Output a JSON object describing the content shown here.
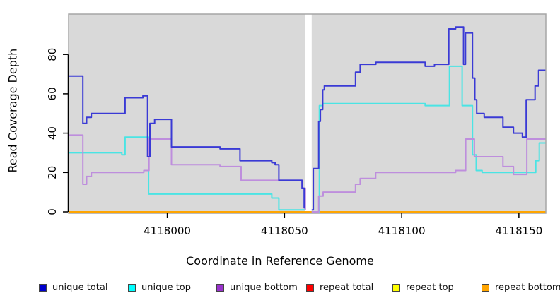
{
  "chart_data": {
    "type": "line",
    "subtype": "step-coverage",
    "title": "",
    "xlabel": "Coordinate in Reference Genome",
    "ylabel": "Read Coverage Depth",
    "xlim": [
      4117957.9,
      4118161.5
    ],
    "ylim": [
      0,
      100
    ],
    "x_ticks": [
      4118000,
      4118050,
      4118100,
      4118150
    ],
    "x_tick_labels": [
      "4118000",
      "4118050",
      "4118100",
      "4118150"
    ],
    "y_ticks": [
      0,
      20,
      40,
      60,
      80
    ],
    "y_tick_labels": [
      "0",
      "20",
      "40",
      "60",
      "80"
    ],
    "grid": false,
    "plot_bg_color": "#D9D9D9",
    "plot_border_color": "#A6A6A6",
    "gap_region": [
      4118058.9,
      4118061.6
    ],
    "gap_color": "#FFFFFF",
    "series": [
      {
        "name": "repeat total",
        "color": "#E02020",
        "segments": [
          [
            [
              4117957.9,
              0
            ],
            [
              4118161.5,
              0
            ]
          ]
        ]
      },
      {
        "name": "repeat top",
        "color": "#FFFF33",
        "segments": [
          [
            [
              4117957.9,
              0
            ],
            [
              4118161.5,
              0
            ]
          ]
        ]
      },
      {
        "name": "repeat bottom",
        "color": "#FFA500",
        "segments": [
          [
            [
              4117957.9,
              0
            ],
            [
              4118161.5,
              0
            ]
          ]
        ]
      },
      {
        "name": "unique top",
        "color": "#4AE4E4",
        "segments": [
          [
            [
              4117957.9,
              30
            ],
            [
              4117980.6,
              29
            ],
            [
              4117982,
              38
            ],
            [
              4117992,
              9
            ],
            [
              4118044.6,
              7
            ],
            [
              4118047.6,
              1
            ],
            [
              4118058.9,
              1
            ]
          ],
          [
            [
              4118061.6,
              0
            ],
            [
              4118064.9,
              54
            ],
            [
              4118066.3,
              55
            ],
            [
              4118110,
              54
            ],
            [
              4118120.4,
              74
            ],
            [
              4118125.8,
              54
            ],
            [
              4118130.2,
              29
            ],
            [
              4118131.8,
              21
            ],
            [
              4118134.3,
              20
            ],
            [
              4118157.2,
              26
            ],
            [
              4118158.7,
              35
            ],
            [
              4118161.5,
              35
            ]
          ]
        ]
      },
      {
        "name": "unique bottom",
        "color": "#BE8EDD",
        "segments": [
          [
            [
              4117957.9,
              39
            ],
            [
              4117964,
              14
            ],
            [
              4117965.6,
              18
            ],
            [
              4117967.6,
              20
            ],
            [
              4117990,
              21
            ],
            [
              4117992.2,
              37
            ],
            [
              4118001.8,
              24
            ],
            [
              4118022.5,
              23
            ],
            [
              4118031.5,
              16
            ],
            [
              4118057.5,
              12
            ],
            [
              4118058.9,
              1
            ]
          ],
          [
            [
              4118061.6,
              0
            ],
            [
              4118064.6,
              8
            ],
            [
              4118066.5,
              10
            ],
            [
              4118080.3,
              14
            ],
            [
              4118082.3,
              17
            ],
            [
              4118088.9,
              20
            ],
            [
              4118123,
              21
            ],
            [
              4118127.3,
              37
            ],
            [
              4118131,
              28
            ],
            [
              4118143.2,
              23
            ],
            [
              4118147.7,
              19
            ],
            [
              4118153.4,
              37
            ],
            [
              4118161.5,
              37
            ]
          ]
        ]
      },
      {
        "name": "unique total",
        "color": "#3A3AD5",
        "segments": [
          [
            [
              4117957.9,
              69
            ],
            [
              4117964,
              45
            ],
            [
              4117965.6,
              48
            ],
            [
              4117967.6,
              50
            ],
            [
              4117982,
              58
            ],
            [
              4117989.6,
              59
            ],
            [
              4117991.6,
              28
            ],
            [
              4117992.6,
              45
            ],
            [
              4117994.6,
              47
            ],
            [
              4118001.8,
              33
            ],
            [
              4118022.5,
              32
            ],
            [
              4118031,
              26
            ],
            [
              4118044.6,
              25
            ],
            [
              4118046,
              24
            ],
            [
              4118047.6,
              16
            ],
            [
              4118057.5,
              12
            ],
            [
              4118058.4,
              2
            ],
            [
              4118058.9,
              2
            ]
          ],
          [
            [
              4118061.6,
              1
            ],
            [
              4118062.3,
              22
            ],
            [
              4118064.6,
              46
            ],
            [
              4118065.3,
              52
            ],
            [
              4118066.3,
              62
            ],
            [
              4118067,
              64
            ],
            [
              4118080.3,
              71
            ],
            [
              4118082.3,
              75
            ],
            [
              4118089,
              76
            ],
            [
              4118110,
              74
            ],
            [
              4118114,
              75
            ],
            [
              4118120.1,
              93
            ],
            [
              4118123,
              94
            ],
            [
              4118126.4,
              75
            ],
            [
              4118127.2,
              91
            ],
            [
              4118130.2,
              68
            ],
            [
              4118131.2,
              57
            ],
            [
              4118132,
              50
            ],
            [
              4118135.2,
              48
            ],
            [
              4118143.2,
              43
            ],
            [
              4118147.7,
              40
            ],
            [
              4118151.5,
              38
            ],
            [
              4118153.1,
              57
            ],
            [
              4118156.9,
              64
            ],
            [
              4118158.4,
              72
            ],
            [
              4118161.5,
              72
            ]
          ]
        ]
      }
    ]
  },
  "legend": {
    "items": [
      {
        "label": "unique total",
        "color": "#0000CC"
      },
      {
        "label": "unique top",
        "color": "#00FFFF"
      },
      {
        "label": "unique bottom",
        "color": "#9932CC"
      },
      {
        "label": "repeat total",
        "color": "#FF0000"
      },
      {
        "label": "repeat top",
        "color": "#FFFF00"
      },
      {
        "label": "repeat bottom",
        "color": "#FFA500"
      }
    ]
  }
}
